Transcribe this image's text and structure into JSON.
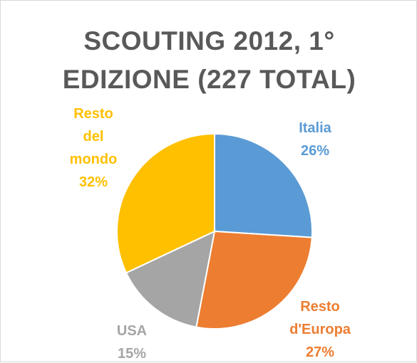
{
  "chart_data": {
    "type": "pie",
    "title_lines": [
      "SCOUTING 2012, 1°",
      "EDIZIONE (227 TOTAL)"
    ],
    "start_angle_deg": 0,
    "direction": "clockwise",
    "slices": [
      {
        "name": "Italia",
        "value": 26,
        "label_lines": [
          "Italia",
          "26%"
        ],
        "color": "#5b9bd5"
      },
      {
        "name": "Resto d'Europa",
        "value": 27,
        "label_lines": [
          "Resto",
          "d'Europa",
          "27%"
        ],
        "color": "#ed7d31"
      },
      {
        "name": "USA",
        "value": 15,
        "label_lines": [
          "USA",
          "15%"
        ],
        "color": "#a5a5a5"
      },
      {
        "name": "Resto del mondo",
        "value": 32,
        "label_lines": [
          "Resto",
          "del",
          "mondo",
          "32%"
        ],
        "color": "#ffc000"
      }
    ],
    "legend": "none",
    "data_labels": "outside"
  }
}
